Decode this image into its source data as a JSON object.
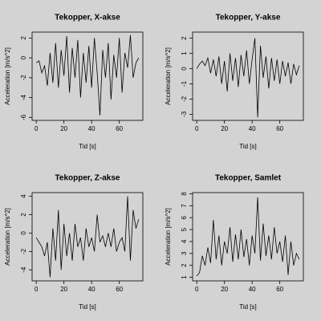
{
  "chart_data": [
    {
      "type": "line",
      "title": "Tekopper, X-akse",
      "xlabel": "Tid [s]",
      "ylabel": "Acceleration [m/s^2]",
      "color": "#000000",
      "x": [
        0,
        2,
        4,
        6,
        8,
        10,
        12,
        14,
        16,
        18,
        20,
        22,
        24,
        26,
        28,
        30,
        32,
        34,
        36,
        38,
        40,
        42,
        44,
        46,
        48,
        50,
        52,
        54,
        56,
        58,
        60,
        62,
        64,
        66,
        68,
        70,
        72,
        74
      ],
      "values": [
        -0.5,
        -0.3,
        -1.5,
        -0.8,
        -2.8,
        0.5,
        -2.5,
        1.5,
        -3,
        0.8,
        -1.8,
        2.2,
        -3.5,
        1,
        -2,
        1.8,
        -4,
        0.5,
        -2.5,
        1.2,
        -3,
        2,
        -1.5,
        -5.8,
        0.8,
        -2,
        1.5,
        -4.2,
        0.3,
        -2,
        2,
        -3.5,
        0.5,
        -1,
        2.3,
        -2,
        -0.5,
        0
      ],
      "xlim": [
        -3,
        77
      ],
      "xticks": [
        0,
        20,
        40,
        60
      ],
      "ylim": [
        -6.3,
        2.6
      ],
      "yticks": [
        -6,
        -4,
        -2,
        0,
        2
      ]
    },
    {
      "type": "line",
      "title": "Tekopper, Y-akse",
      "xlabel": "Tid [s]",
      "ylabel": "Acceleration [m/s^2]",
      "color": "#000000",
      "x": [
        0,
        2,
        4,
        6,
        8,
        10,
        12,
        14,
        16,
        18,
        20,
        22,
        24,
        26,
        28,
        30,
        32,
        34,
        36,
        38,
        40,
        42,
        44,
        46,
        48,
        50,
        52,
        54,
        56,
        58,
        60,
        62,
        64,
        66,
        68,
        70,
        72,
        74
      ],
      "values": [
        0,
        0.3,
        0.5,
        0.2,
        0.7,
        -0.3,
        0.6,
        -0.5,
        0.8,
        -1,
        0.5,
        -1.5,
        1,
        -0.8,
        0.7,
        -1.2,
        0.9,
        -0.5,
        1.2,
        -1,
        0.6,
        2,
        -3.2,
        1.5,
        -0.6,
        0.8,
        -1.3,
        0.7,
        -0.8,
        0.6,
        -1,
        0.5,
        -0.5,
        0.4,
        -1,
        0.3,
        -0.4,
        0.2
      ],
      "xlim": [
        -3,
        77
      ],
      "xticks": [
        0,
        20,
        40,
        60
      ],
      "ylim": [
        -3.4,
        2.4
      ],
      "yticks": [
        -3,
        -2,
        -1,
        0,
        1,
        2
      ]
    },
    {
      "type": "line",
      "title": "Tekopper, Z-akse",
      "xlabel": "Tid [s]",
      "ylabel": "Acceleration [m/s^2]",
      "color": "#000000",
      "x": [
        0,
        2,
        4,
        6,
        8,
        10,
        12,
        14,
        16,
        18,
        20,
        22,
        24,
        26,
        28,
        30,
        32,
        34,
        36,
        38,
        40,
        42,
        44,
        46,
        48,
        50,
        52,
        54,
        56,
        58,
        60,
        62,
        64,
        66,
        68,
        70,
        72,
        74
      ],
      "values": [
        -0.5,
        -1,
        -1.5,
        -2.5,
        -1,
        -4.8,
        0.5,
        -3,
        2.5,
        -4,
        1,
        -2.5,
        0,
        -3,
        1,
        -1.5,
        -0.5,
        -3,
        0.5,
        -1.5,
        -0.5,
        -2,
        2,
        -1,
        -0.3,
        -1.5,
        0,
        -1.5,
        0.5,
        -2,
        -1,
        -0.5,
        -2,
        4,
        -3,
        2.5,
        0.5,
        1.5
      ],
      "xlim": [
        -3,
        77
      ],
      "xticks": [
        0,
        20,
        40,
        60
      ],
      "ylim": [
        -5.2,
        4.4
      ],
      "yticks": [
        -4,
        -2,
        0,
        2,
        4
      ]
    },
    {
      "type": "line",
      "title": "Tekopper, Samlet",
      "xlabel": "Tid [s]",
      "ylabel": "Acceleration [m/s^2]",
      "color": "#000000",
      "x": [
        0,
        2,
        4,
        6,
        8,
        10,
        12,
        14,
        16,
        18,
        20,
        22,
        24,
        26,
        28,
        30,
        32,
        34,
        36,
        38,
        40,
        42,
        44,
        46,
        48,
        50,
        52,
        54,
        56,
        58,
        60,
        62,
        64,
        66,
        68,
        70,
        72,
        74
      ],
      "values": [
        1.1,
        1.4,
        2.8,
        2,
        3.5,
        2.2,
        5.8,
        2.5,
        4.5,
        2,
        4,
        3,
        5.2,
        2.3,
        4.6,
        2.5,
        5,
        2.7,
        4.2,
        2,
        4.5,
        3,
        7.7,
        2.4,
        5.5,
        2.8,
        4.5,
        2.5,
        5.2,
        3,
        4,
        2.3,
        4.5,
        1.2,
        4,
        2,
        3,
        2.5
      ],
      "xlim": [
        -3,
        77
      ],
      "xticks": [
        0,
        20,
        40,
        60
      ],
      "ylim": [
        0.7,
        8.1
      ],
      "yticks": [
        1,
        2,
        3,
        4,
        5,
        6,
        7,
        8
      ]
    }
  ]
}
